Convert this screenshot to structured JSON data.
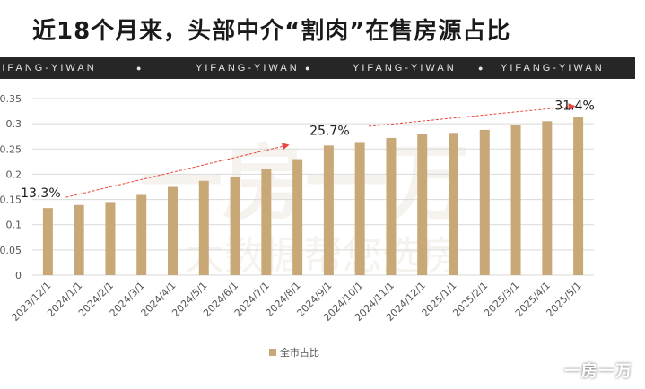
{
  "title": "近18个月来，头部中介“割肉”在售房源占比",
  "banner": {
    "text": "YIFANG-YIWAN",
    "repeat": 4,
    "separator": "●"
  },
  "watermark": {
    "large_line1": "一房一万",
    "large_line2": "大数据帮您选房",
    "corner": "一房一万"
  },
  "annotations": [
    {
      "label": "13.3%",
      "from_index": 0,
      "to_index": 8
    },
    {
      "label": "25.7%",
      "from_index": 10,
      "to_index": 17
    },
    {
      "label": "31.4%"
    }
  ],
  "colors": {
    "bar": "#c9a877",
    "arrow": "#e8463a",
    "grid": "#d9d9d9",
    "axis_text": "#555555"
  },
  "chart_data": {
    "type": "bar",
    "title": "",
    "xlabel": "",
    "ylabel": "",
    "ylim": [
      0,
      0.35
    ],
    "yticks": [
      "0",
      "0.05",
      "0.1",
      "0.15",
      "0.2",
      "0.25",
      "0.3",
      "0.35"
    ],
    "categories": [
      "2023/12/1",
      "2024/1/1",
      "2024/2/1",
      "2024/3/1",
      "2024/4/1",
      "2024/5/1",
      "2024/6/1",
      "2024/7/1",
      "2024/8/1",
      "2024/9/1",
      "2024/10/1",
      "2024/11/1",
      "2024/12/1",
      "2025/1/1",
      "2025/2/1",
      "2025/3/1",
      "2025/4/1",
      "2025/5/1"
    ],
    "series": [
      {
        "name": "全市占比",
        "values": [
          0.133,
          0.139,
          0.145,
          0.159,
          0.175,
          0.187,
          0.194,
          0.21,
          0.23,
          0.257,
          0.264,
          0.272,
          0.28,
          0.282,
          0.288,
          0.298,
          0.305,
          0.314
        ]
      }
    ],
    "grid": true,
    "legend": "bottom"
  }
}
